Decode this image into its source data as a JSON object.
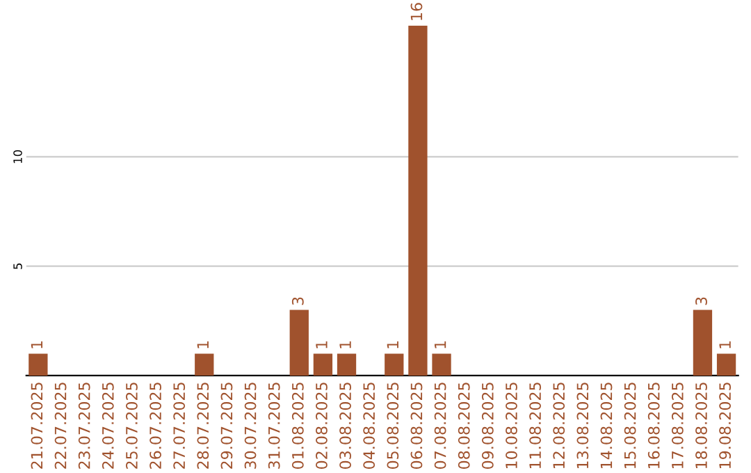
{
  "chart_data": {
    "type": "bar",
    "categories": [
      "21.07.2025",
      "22.07.2025",
      "23.07.2025",
      "24.07.2025",
      "25.07.2025",
      "26.07.2025",
      "27.07.2025",
      "28.07.2025",
      "29.07.2025",
      "30.07.2025",
      "31.07.2025",
      "01.08.2025",
      "02.08.2025",
      "03.08.2025",
      "04.08.2025",
      "05.08.2025",
      "06.08.2025",
      "07.08.2025",
      "08.08.2025",
      "09.08.2025",
      "10.08.2025",
      "11.08.2025",
      "12.08.2025",
      "13.08.2025",
      "14.08.2025",
      "15.08.2025",
      "16.08.2025",
      "17.08.2025",
      "18.08.2025",
      "19.08.2025"
    ],
    "values": [
      1,
      0,
      0,
      0,
      0,
      0,
      0,
      1,
      0,
      0,
      0,
      3,
      1,
      1,
      0,
      1,
      16,
      1,
      0,
      0,
      0,
      0,
      0,
      0,
      0,
      0,
      0,
      0,
      3,
      1
    ],
    "value_labels": [
      "1",
      null,
      null,
      null,
      null,
      null,
      null,
      "1",
      null,
      null,
      null,
      "3",
      "1",
      "1",
      null,
      "1",
      "16",
      "1",
      null,
      null,
      null,
      null,
      null,
      null,
      null,
      null,
      null,
      null,
      "3",
      "1"
    ],
    "color": "#a0522d",
    "ylim": [
      0,
      16
    ],
    "yticks": [
      5,
      10
    ],
    "grid": "y",
    "legend": false
  }
}
